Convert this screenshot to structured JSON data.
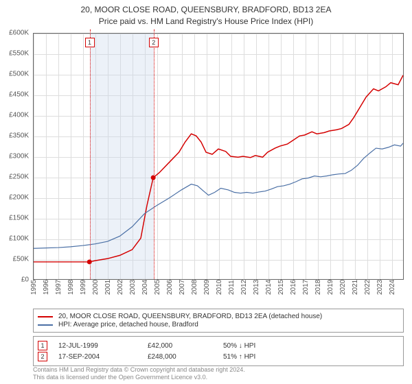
{
  "title": {
    "line1": "20, MOOR CLOSE ROAD, QUEENSBURY, BRADFORD, BD13 2EA",
    "line2": "Price paid vs. HM Land Registry's House Price Index (HPI)",
    "fontsize": 12,
    "color": "#333333"
  },
  "chart": {
    "type": "line",
    "background_color": "#ffffff",
    "border_color": "#666666",
    "grid_color": "#dddddd",
    "ylim": [
      0,
      600000
    ],
    "ytick_step": 50000,
    "y_tick_labels": [
      "£0",
      "£50K",
      "£100K",
      "£150K",
      "£200K",
      "£250K",
      "£300K",
      "£350K",
      "£400K",
      "£450K",
      "£500K",
      "£550K",
      "£600K"
    ],
    "x_years": [
      1995,
      1996,
      1997,
      1998,
      1999,
      2000,
      2001,
      2002,
      2003,
      2004,
      2005,
      2006,
      2007,
      2008,
      2009,
      2010,
      2011,
      2012,
      2013,
      2014,
      2015,
      2016,
      2017,
      2018,
      2019,
      2020,
      2021,
      2022,
      2023,
      2024
    ],
    "x_min": 1995.0,
    "x_max": 2025.0,
    "tick_fontsize": 10,
    "tick_color": "#555555",
    "marker_band": {
      "x_start": 1999.53,
      "x_end": 2004.71,
      "fill_color": "#c8d7eb",
      "fill_opacity": 0.35
    },
    "markers": [
      {
        "id": 1,
        "x": 1999.53,
        "color": "#d40000"
      },
      {
        "id": 2,
        "x": 2004.71,
        "color": "#d40000"
      }
    ],
    "series": [
      {
        "name": "price_paid",
        "label": "20, MOOR CLOSE ROAD, QUEENSBURY, BRADFORD, BD13 2EA (detached house)",
        "color": "#d40000",
        "line_width": 1.5,
        "points": [
          [
            1995.0,
            42000
          ],
          [
            1996.0,
            42000
          ],
          [
            1997.0,
            42000
          ],
          [
            1998.0,
            42000
          ],
          [
            1999.0,
            42000
          ],
          [
            1999.53,
            42000
          ],
          [
            2000.0,
            45000
          ],
          [
            2001.0,
            50000
          ],
          [
            2002.0,
            58000
          ],
          [
            2003.0,
            72000
          ],
          [
            2003.7,
            100000
          ],
          [
            2004.2,
            180000
          ],
          [
            2004.71,
            248000
          ],
          [
            2005.2,
            260000
          ],
          [
            2006.0,
            285000
          ],
          [
            2006.8,
            310000
          ],
          [
            2007.3,
            335000
          ],
          [
            2007.8,
            355000
          ],
          [
            2008.2,
            350000
          ],
          [
            2008.6,
            335000
          ],
          [
            2009.0,
            310000
          ],
          [
            2009.5,
            305000
          ],
          [
            2010.0,
            318000
          ],
          [
            2010.6,
            312000
          ],
          [
            2011.0,
            300000
          ],
          [
            2011.6,
            298000
          ],
          [
            2012.0,
            300000
          ],
          [
            2012.6,
            297000
          ],
          [
            2013.0,
            302000
          ],
          [
            2013.6,
            298000
          ],
          [
            2014.0,
            310000
          ],
          [
            2014.6,
            320000
          ],
          [
            2015.0,
            325000
          ],
          [
            2015.6,
            330000
          ],
          [
            2016.0,
            338000
          ],
          [
            2016.6,
            350000
          ],
          [
            2017.0,
            352000
          ],
          [
            2017.6,
            360000
          ],
          [
            2018.0,
            355000
          ],
          [
            2018.6,
            358000
          ],
          [
            2019.0,
            362000
          ],
          [
            2019.6,
            365000
          ],
          [
            2020.0,
            368000
          ],
          [
            2020.6,
            378000
          ],
          [
            2021.0,
            395000
          ],
          [
            2021.6,
            425000
          ],
          [
            2022.0,
            445000
          ],
          [
            2022.6,
            465000
          ],
          [
            2023.0,
            460000
          ],
          [
            2023.6,
            470000
          ],
          [
            2024.0,
            480000
          ],
          [
            2024.6,
            475000
          ],
          [
            2025.0,
            498000
          ]
        ],
        "sale_points": [
          {
            "x": 1999.53,
            "y": 42000
          },
          {
            "x": 2004.71,
            "y": 248000
          }
        ]
      },
      {
        "name": "hpi",
        "label": "HPI: Average price, detached house, Bradford",
        "color": "#4a6fa5",
        "line_width": 1.2,
        "points": [
          [
            1995.0,
            75000
          ],
          [
            1996.0,
            76000
          ],
          [
            1997.0,
            77000
          ],
          [
            1998.0,
            79000
          ],
          [
            1999.0,
            82000
          ],
          [
            2000.0,
            86000
          ],
          [
            2001.0,
            92000
          ],
          [
            2002.0,
            105000
          ],
          [
            2003.0,
            128000
          ],
          [
            2004.0,
            160000
          ],
          [
            2005.0,
            180000
          ],
          [
            2006.0,
            198000
          ],
          [
            2007.0,
            218000
          ],
          [
            2007.8,
            232000
          ],
          [
            2008.3,
            228000
          ],
          [
            2008.8,
            215000
          ],
          [
            2009.2,
            205000
          ],
          [
            2009.7,
            212000
          ],
          [
            2010.2,
            222000
          ],
          [
            2010.8,
            218000
          ],
          [
            2011.3,
            212000
          ],
          [
            2011.8,
            210000
          ],
          [
            2012.3,
            212000
          ],
          [
            2012.8,
            210000
          ],
          [
            2013.3,
            213000
          ],
          [
            2013.8,
            215000
          ],
          [
            2014.3,
            220000
          ],
          [
            2014.8,
            226000
          ],
          [
            2015.3,
            228000
          ],
          [
            2015.8,
            232000
          ],
          [
            2016.3,
            238000
          ],
          [
            2016.8,
            245000
          ],
          [
            2017.3,
            247000
          ],
          [
            2017.8,
            252000
          ],
          [
            2018.3,
            250000
          ],
          [
            2018.8,
            252000
          ],
          [
            2019.3,
            255000
          ],
          [
            2019.8,
            257000
          ],
          [
            2020.3,
            258000
          ],
          [
            2020.8,
            266000
          ],
          [
            2021.3,
            278000
          ],
          [
            2021.8,
            295000
          ],
          [
            2022.3,
            308000
          ],
          [
            2022.8,
            320000
          ],
          [
            2023.3,
            318000
          ],
          [
            2023.8,
            322000
          ],
          [
            2024.3,
            328000
          ],
          [
            2024.8,
            325000
          ],
          [
            2025.0,
            332000
          ]
        ]
      }
    ]
  },
  "legend": {
    "border_color": "#999999",
    "fontsize": 10
  },
  "transactions": [
    {
      "id": "1",
      "border_color": "#d40000",
      "date": "12-JUL-1999",
      "price": "£42,000",
      "diff": "50% ↓ HPI"
    },
    {
      "id": "2",
      "border_color": "#d40000",
      "date": "17-SEP-2004",
      "price": "£248,000",
      "diff": "51% ↑ HPI"
    }
  ],
  "copyright": {
    "line1": "Contains HM Land Registry data © Crown copyright and database right 2024.",
    "line2": "This data is licensed under the Open Government Licence v3.0.",
    "color": "#888888",
    "fontsize": 9
  }
}
